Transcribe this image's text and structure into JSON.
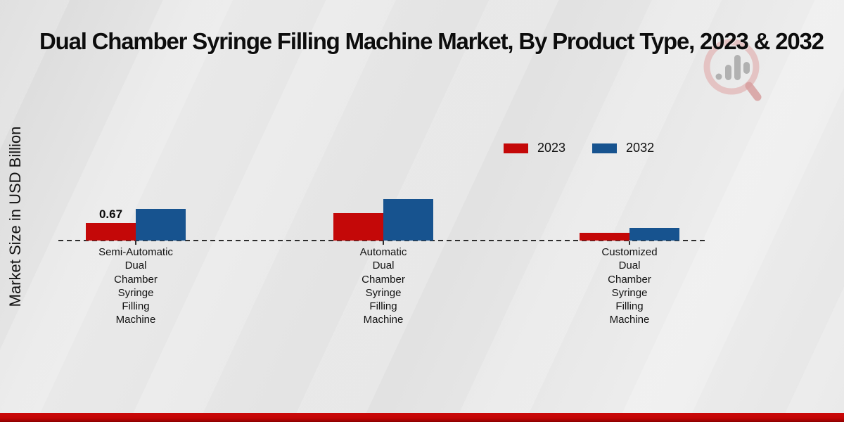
{
  "page": {
    "title": "Dual Chamber Syringe Filling Machine Market, By Product Type, 2023 & 2032",
    "y_axis_label": "Market Size in USD Billion",
    "footer_band_color": "#c20505",
    "background_color": "#e6e6e6"
  },
  "legend": {
    "items": [
      {
        "label": "2023",
        "color": "#c40808"
      },
      {
        "label": "2032",
        "color": "#17538f"
      }
    ]
  },
  "chart_data": {
    "type": "bar",
    "title": "Dual Chamber Syringe Filling Machine Market, By Product Type, 2023 & 2032",
    "xlabel": "",
    "ylabel": "Market Size in USD Billion",
    "categories": [
      "Semi-Automatic Dual Chamber Syringe Filling Machine",
      "Automatic Dual Chamber Syringe Filling Machine",
      "Customized Dual Chamber Syringe Filling Machine"
    ],
    "category_display": [
      "Semi-Automatic\nDual\nChamber\nSyringe\nFilling\nMachine",
      "Automatic\nDual\nChamber\nSyringe\nFilling\nMachine",
      "Customized\nDual\nChamber\nSyringe\nFilling\nMachine"
    ],
    "series": [
      {
        "name": "2023",
        "color": "#c40808",
        "values": [
          0.67,
          1.05,
          0.3
        ]
      },
      {
        "name": "2032",
        "color": "#17538f",
        "values": [
          1.2,
          1.58,
          0.48
        ]
      }
    ],
    "annotations": [
      {
        "series": "2023",
        "category_index": 0,
        "text": "0.67"
      }
    ],
    "baseline": {
      "style": "dashed",
      "value": 0
    },
    "legend_position": "upper-right",
    "grid": false,
    "ylim": [
      0,
      1.8
    ]
  }
}
